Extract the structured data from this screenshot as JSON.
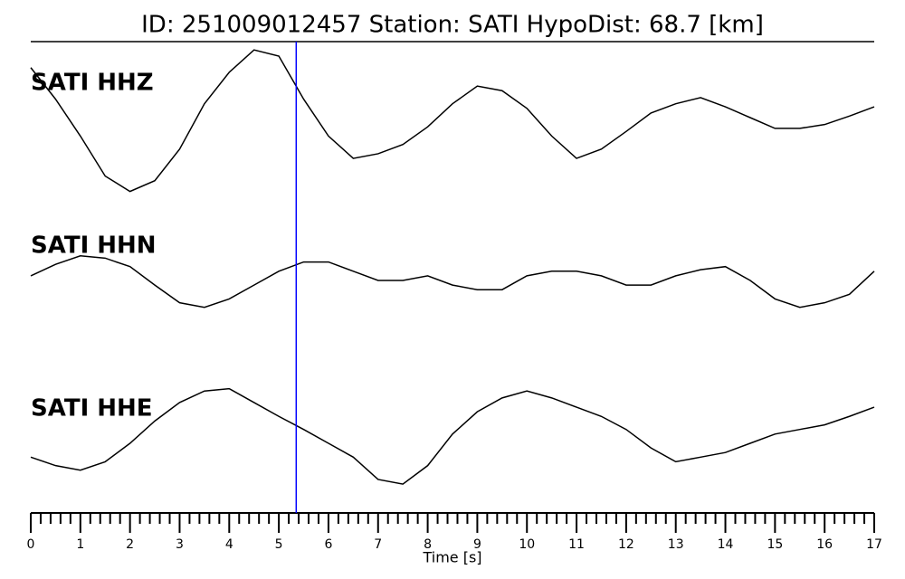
{
  "chart_data": {
    "type": "line",
    "title": "ID: 251009012457   Station: SATI   HypoDist:    68.7 [km]",
    "xlabel": "Time [s]",
    "xlim": [
      0,
      17
    ],
    "xticks": [
      0,
      1,
      2,
      3,
      4,
      5,
      6,
      7,
      8,
      9,
      10,
      11,
      12,
      13,
      14,
      15,
      16,
      17
    ],
    "minor_tick_step": 0.2,
    "ylim": [
      -1,
      1
    ],
    "pick": {
      "x": 5.35,
      "color": "#0000ff"
    },
    "label_color": "#4a9a00",
    "x": [
      0,
      0.5,
      1,
      1.5,
      2,
      2.5,
      3,
      3.5,
      4,
      4.5,
      5,
      5.5,
      6,
      6.5,
      7,
      7.5,
      8,
      8.5,
      9,
      9.5,
      10,
      10.5,
      11,
      11.5,
      12,
      12.5,
      13,
      13.5,
      14,
      14.5,
      15,
      15.5,
      16,
      16.5,
      17
    ],
    "series": [
      {
        "name": "SATI HHZ",
        "color": "#000000",
        "values": [
          0.65,
          0.24,
          -0.24,
          -0.76,
          -0.96,
          -0.82,
          -0.41,
          0.18,
          0.59,
          0.88,
          0.8,
          0.24,
          -0.24,
          -0.53,
          -0.47,
          -0.35,
          -0.12,
          0.18,
          0.41,
          0.35,
          0.12,
          -0.24,
          -0.53,
          -0.41,
          -0.18,
          0.06,
          0.18,
          0.26,
          0.14,
          0,
          -0.14,
          -0.14,
          -0.09,
          0.02,
          0.14
        ]
      },
      {
        "name": "SATI HHN",
        "color": "#000000",
        "values": [
          0.06,
          0.21,
          0.32,
          0.29,
          0.18,
          -0.06,
          -0.29,
          -0.35,
          -0.24,
          -0.06,
          0.12,
          0.24,
          0.24,
          0.12,
          0,
          0,
          0.06,
          -0.06,
          -0.12,
          -0.12,
          0.06,
          0.12,
          0.12,
          0.06,
          -0.06,
          -0.06,
          0.06,
          0.14,
          0.18,
          0,
          -0.24,
          -0.35,
          -0.29,
          -0.18,
          0.12
        ]
      },
      {
        "name": "SATI HHE",
        "color": "#000000",
        "values": [
          -0.18,
          -0.29,
          -0.35,
          -0.24,
          0,
          0.29,
          0.53,
          0.68,
          0.71,
          0.53,
          0.35,
          0.18,
          0,
          -0.18,
          -0.47,
          -0.53,
          -0.29,
          0.12,
          0.41,
          0.59,
          0.68,
          0.59,
          0.47,
          0.35,
          0.18,
          -0.06,
          -0.24,
          -0.18,
          -0.12,
          0,
          0.12,
          0.18,
          0.24,
          0.35,
          0.47
        ]
      }
    ]
  }
}
